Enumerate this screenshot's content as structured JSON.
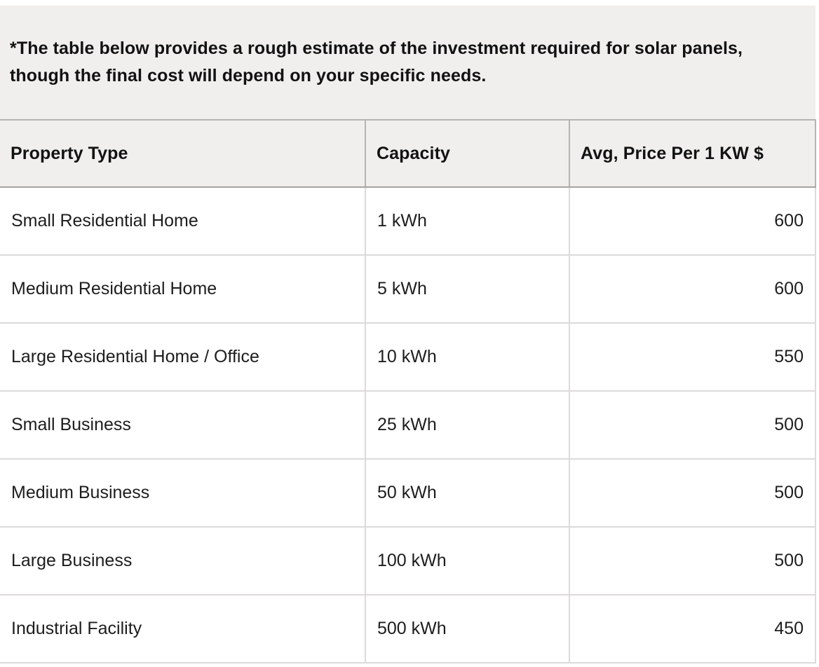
{
  "note": {
    "text": "*The table below provides a rough estimate of the investment required for solar panels, though the final cost will depend on your specific needs."
  },
  "table": {
    "headers": [
      "Property Type",
      "Capacity",
      "Avg, Price Per 1 KW $"
    ],
    "rows": [
      {
        "property_type": "Small Residential Home",
        "capacity": "1 kWh",
        "price": "600"
      },
      {
        "property_type": "Medium Residential Home",
        "capacity": "5 kWh",
        "price": "600"
      },
      {
        "property_type": "Large Residential Home / Office",
        "capacity": "10 kWh",
        "price": "550"
      },
      {
        "property_type": "Small Business",
        "capacity": "25 kWh",
        "price": "500"
      },
      {
        "property_type": "Medium Business",
        "capacity": "50 kWh",
        "price": "500"
      },
      {
        "property_type": "Large Business",
        "capacity": "100 kWh",
        "price": "500"
      },
      {
        "property_type": "Industrial Facility",
        "capacity": "500 kWh",
        "price": "450"
      }
    ]
  },
  "colors": {
    "panel_bg": "#f0efee",
    "header_border_dark": "#a5a3a3",
    "header_border": "#b5b3b3",
    "grid_border": "#dcdada",
    "text": "#121212"
  }
}
